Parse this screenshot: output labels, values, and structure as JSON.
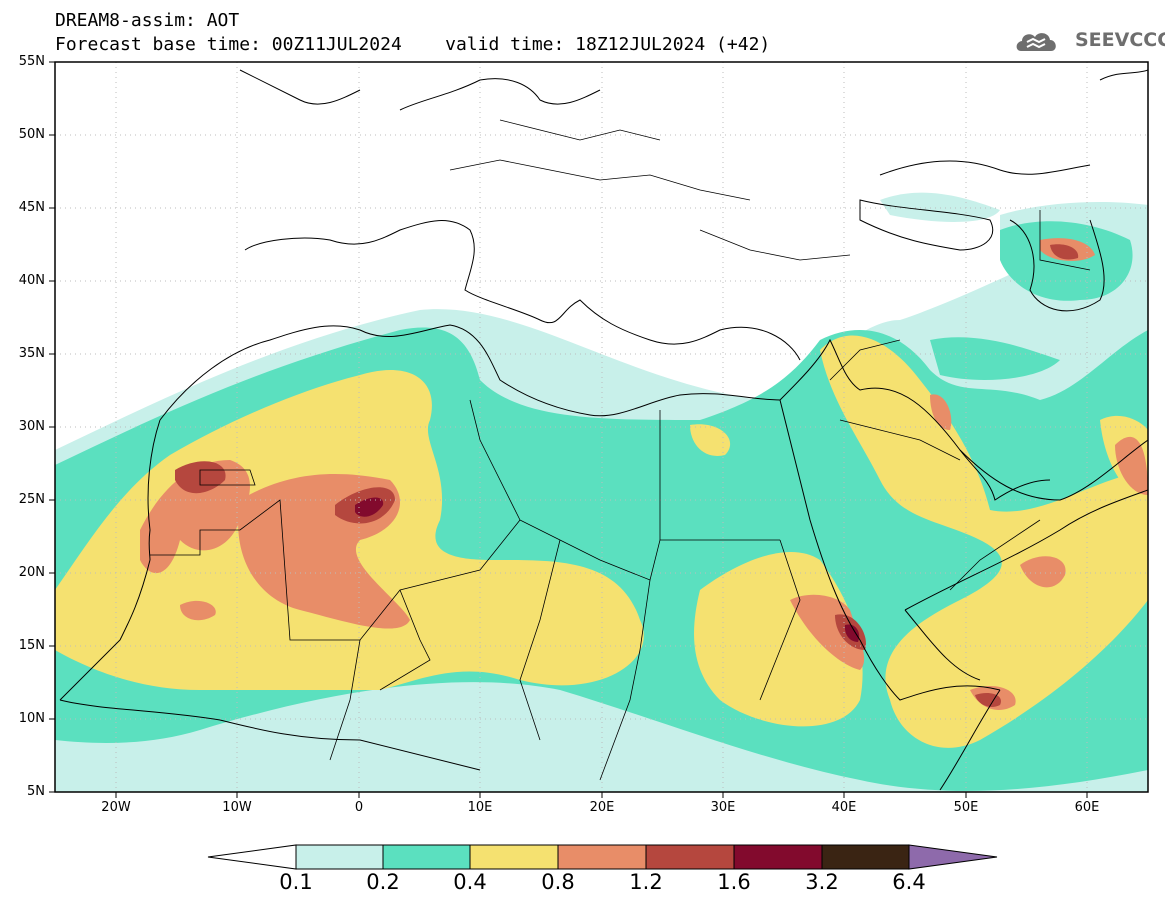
{
  "header": {
    "model_line": "DREAM8-assim: AOT",
    "time_line": "Forecast base time: 00Z11JUL2024    valid time: 18Z12JUL2024 (+42)",
    "logo_text": "SEEVCCC"
  },
  "map": {
    "variable": "AOT",
    "projection": "lat-lon",
    "lon_range": [
      -25,
      65
    ],
    "lat_range": [
      5,
      55
    ],
    "lat_ticks": [
      "55N",
      "50N",
      "45N",
      "40N",
      "35N",
      "30N",
      "25N",
      "20N",
      "15N",
      "10N",
      "5N"
    ],
    "lon_ticks": [
      "20W",
      "10W",
      "0",
      "10E",
      "20E",
      "30E",
      "40E",
      "50E",
      "60E"
    ],
    "colors": {
      "c01": "#c8f0ea",
      "c02": "#5be0bf",
      "c04": "#f5e170",
      "c08": "#e88d68",
      "c12": "#b5473e",
      "c16": "#820a2d",
      "c32": "#3a2413",
      "c64": "#8e6aab"
    }
  },
  "colorbar": {
    "levels": [
      "0.1",
      "0.2",
      "0.4",
      "0.8",
      "1.2",
      "1.6",
      "3.2",
      "6.4"
    ],
    "colors": [
      "#c8f0ea",
      "#5be0bf",
      "#f5e170",
      "#e88d68",
      "#b5473e",
      "#820a2d",
      "#3a2413"
    ],
    "low_end_color": "#ffffff",
    "high_end_color": "#8e6aab"
  }
}
